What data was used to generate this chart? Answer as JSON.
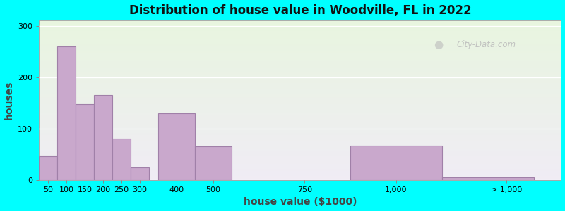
{
  "title": "Distribution of house value in Woodville, FL in 2022",
  "xlabel": "house value ($1000)",
  "ylabel": "houses",
  "bar_color": "#C9A8CC",
  "bar_edgecolor": "#A080A8",
  "background_color": "#00FFFF",
  "yticks": [
    0,
    100,
    200,
    300
  ],
  "ylim": [
    0,
    310
  ],
  "watermark": "City-Data.com",
  "xtick_labels": [
    "50",
    "100",
    "150",
    "200",
    "250",
    "300",
    "400",
    "500",
    "750",
    "1,000",
    "> 1,000"
  ],
  "xtick_pos": [
    50,
    100,
    150,
    200,
    250,
    300,
    400,
    500,
    750,
    1000,
    1300
  ],
  "xlim": [
    25,
    1450
  ],
  "bar_lefts": [
    25,
    75,
    125,
    175,
    225,
    275,
    350,
    450,
    600,
    875,
    1125
  ],
  "bar_widths": [
    50,
    50,
    50,
    50,
    50,
    50,
    100,
    100,
    250,
    250,
    250
  ],
  "bar_heights": [
    47,
    260,
    147,
    165,
    80,
    25,
    130,
    65,
    0,
    67,
    5
  ]
}
